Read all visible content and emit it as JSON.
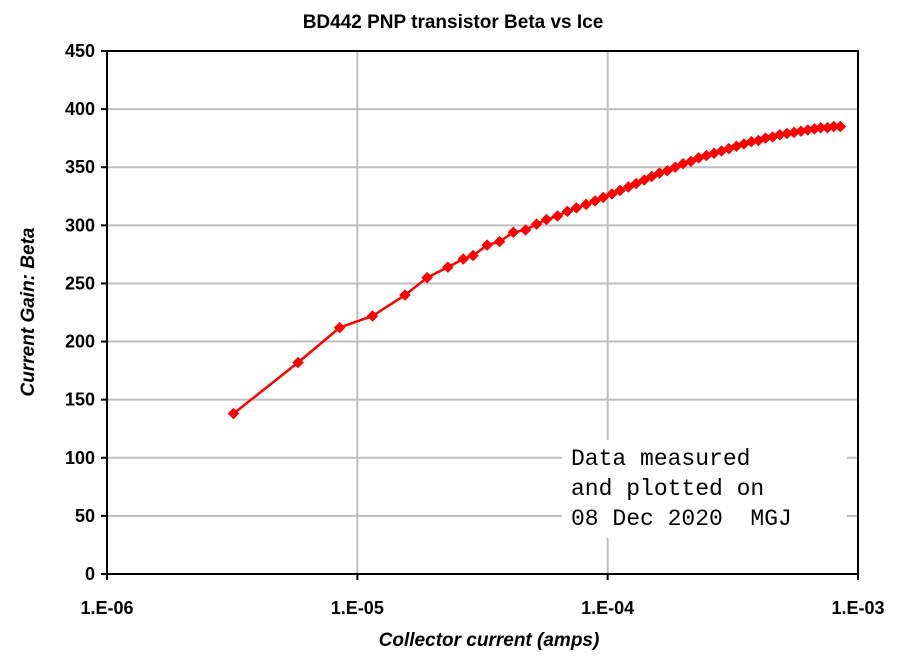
{
  "chart_data": {
    "type": "scatter",
    "title": "BD442  PNP transistor  Beta vs Ice",
    "xlabel": "Collector current (amps)",
    "ylabel": "Current Gain: Beta",
    "x_scale": "log",
    "xlim": [
      1e-06,
      0.001
    ],
    "ylim": [
      0,
      450
    ],
    "x_ticks": [
      {
        "value": 1e-06,
        "label": "1.E-06"
      },
      {
        "value": 1e-05,
        "label": "1.E-05"
      },
      {
        "value": 0.0001,
        "label": "1.E-04"
      },
      {
        "value": 0.001,
        "label": "1.E-03"
      }
    ],
    "y_ticks": [
      0,
      50,
      100,
      150,
      200,
      250,
      300,
      350,
      400,
      450
    ],
    "grid": true,
    "line_color": "#ff0000",
    "marker": "diamond",
    "annotation": [
      "Data measured",
      "and plotted on",
      "08 Dec 2020  MGJ"
    ],
    "series": [
      {
        "name": "Beta",
        "points": [
          [
            3.2e-06,
            138
          ],
          [
            5.8e-06,
            182
          ],
          [
            8.5e-06,
            212
          ],
          [
            1.15e-05,
            222
          ],
          [
            1.55e-05,
            240
          ],
          [
            1.9e-05,
            255
          ],
          [
            2.3e-05,
            264
          ],
          [
            2.65e-05,
            271
          ],
          [
            2.9e-05,
            274
          ],
          [
            3.3e-05,
            283
          ],
          [
            3.7e-05,
            286
          ],
          [
            4.2e-05,
            294
          ],
          [
            4.7e-05,
            296
          ],
          [
            5.2e-05,
            301
          ],
          [
            5.7e-05,
            305
          ],
          [
            6.3e-05,
            308
          ],
          [
            6.9e-05,
            312
          ],
          [
            7.5e-05,
            315
          ],
          [
            8.2e-05,
            318
          ],
          [
            8.9e-05,
            321
          ],
          [
            9.6e-05,
            324
          ],
          [
            0.000104,
            327
          ],
          [
            0.000112,
            330
          ],
          [
            0.000121,
            333
          ],
          [
            0.00013,
            336
          ],
          [
            0.00014,
            339
          ],
          [
            0.00015,
            342
          ],
          [
            0.000161,
            345
          ],
          [
            0.000173,
            347
          ],
          [
            0.000186,
            350
          ],
          [
            0.0002,
            353
          ],
          [
            0.000215,
            355
          ],
          [
            0.000231,
            358
          ],
          [
            0.000248,
            360
          ],
          [
            0.000266,
            362
          ],
          [
            0.000285,
            364
          ],
          [
            0.000305,
            366
          ],
          [
            0.000327,
            368
          ],
          [
            0.00035,
            370
          ],
          [
            0.000375,
            372
          ],
          [
            0.0004,
            373
          ],
          [
            0.000427,
            375
          ],
          [
            0.000456,
            376
          ],
          [
            0.000487,
            378
          ],
          [
            0.00052,
            379
          ],
          [
            0.000555,
            380
          ],
          [
            0.000592,
            381
          ],
          [
            0.00063,
            382
          ],
          [
            0.00067,
            383
          ],
          [
            0.00071,
            384
          ],
          [
            0.000755,
            384
          ],
          [
            0.0008,
            385
          ],
          [
            0.00085,
            385
          ]
        ]
      }
    ]
  }
}
